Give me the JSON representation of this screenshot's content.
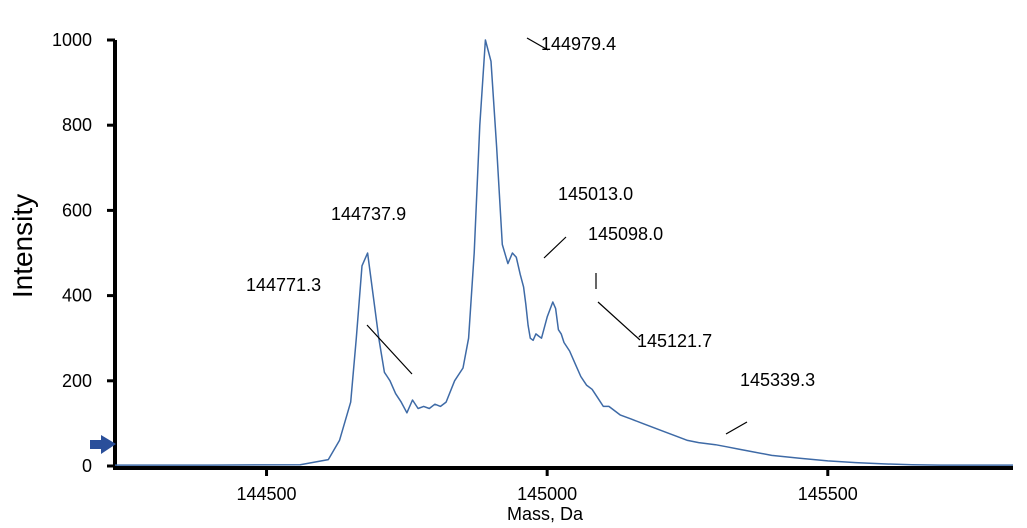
{
  "chart_data": {
    "type": "line",
    "xlabel": "Mass, Da",
    "ylabel": "Intensity",
    "xlim": [
      144230,
      145830
    ],
    "ylim": [
      0,
      1000
    ],
    "x_ticks": [
      144500,
      145000,
      145500
    ],
    "x_tick_labels": [
      "144500",
      "145000",
      "145500"
    ],
    "y_ticks": [
      0,
      200,
      400,
      600,
      800,
      1000
    ],
    "y_tick_labels": [
      "0",
      "200",
      "400",
      "600",
      "800",
      "1000"
    ],
    "grid": false,
    "colors": {
      "line": "#3e6aa6",
      "axis": "#000000",
      "marker": "#2a4f9a"
    },
    "marker_icon": "arrow-right-icon",
    "series": [
      {
        "x": [
          144230,
          144400,
          144560,
          144610,
          144630,
          144650,
          144660,
          144670,
          144680,
          144690,
          144700,
          144710,
          144715,
          144720,
          144725,
          144730,
          144740,
          144750,
          144760,
          144770,
          144780,
          144790,
          144800,
          144810,
          144820,
          144835,
          144850,
          144860,
          144870,
          144880,
          144890,
          144900,
          144910,
          144920,
          144930,
          144938,
          144945,
          144952,
          144958,
          144962,
          144966,
          144970,
          144975,
          144980,
          144985,
          144990,
          145000,
          145010,
          145015,
          145020,
          145025,
          145030,
          145040,
          145050,
          145060,
          145070,
          145080,
          145090,
          145100,
          145110,
          145120,
          145130,
          145150,
          145170,
          145190,
          145210,
          145230,
          145250,
          145270,
          145300,
          145320,
          145340,
          145360,
          145400,
          145450,
          145500,
          145550,
          145600,
          145650,
          145700,
          145830
        ],
        "y": [
          2,
          2,
          3,
          15,
          60,
          150,
          300,
          470,
          500,
          400,
          300,
          220,
          210,
          200,
          185,
          170,
          150,
          125,
          155,
          135,
          140,
          135,
          145,
          140,
          150,
          200,
          230,
          300,
          500,
          800,
          1000,
          950,
          750,
          520,
          475,
          500,
          490,
          450,
          420,
          380,
          330,
          300,
          295,
          310,
          305,
          300,
          350,
          385,
          370,
          320,
          310,
          290,
          270,
          240,
          210,
          190,
          180,
          160,
          140,
          140,
          130,
          120,
          110,
          100,
          90,
          80,
          70,
          60,
          55,
          50,
          45,
          40,
          35,
          25,
          18,
          12,
          8,
          5,
          3,
          2,
          2
        ]
      }
    ],
    "annotations": [
      {
        "text": "144737.9"
      },
      {
        "text": "144771.3"
      },
      {
        "text": "144979.4"
      },
      {
        "text": "145013.0"
      },
      {
        "text": "145098.0"
      },
      {
        "text": "145121.7"
      },
      {
        "text": "145339.3"
      }
    ]
  }
}
